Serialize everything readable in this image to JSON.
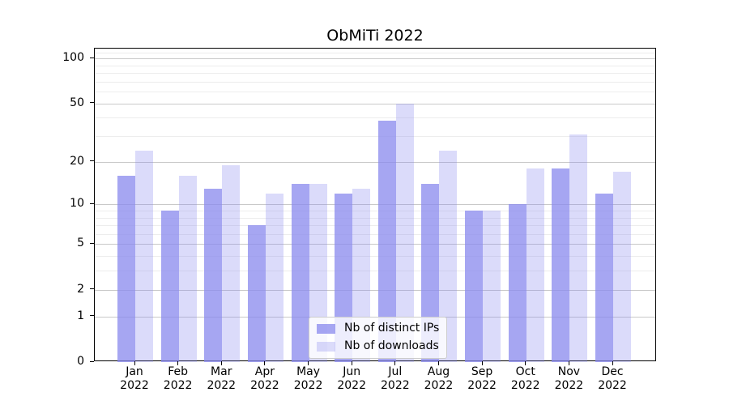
{
  "chart_data": {
    "type": "bar",
    "title": "ObMiTi 2022",
    "categories": [
      {
        "month": "Jan",
        "year": "2022"
      },
      {
        "month": "Feb",
        "year": "2022"
      },
      {
        "month": "Mar",
        "year": "2022"
      },
      {
        "month": "Apr",
        "year": "2022"
      },
      {
        "month": "May",
        "year": "2022"
      },
      {
        "month": "Jun",
        "year": "2022"
      },
      {
        "month": "Jul",
        "year": "2022"
      },
      {
        "month": "Aug",
        "year": "2022"
      },
      {
        "month": "Sep",
        "year": "2022"
      },
      {
        "month": "Oct",
        "year": "2022"
      },
      {
        "month": "Nov",
        "year": "2022"
      },
      {
        "month": "Dec",
        "year": "2022"
      }
    ],
    "series": [
      {
        "name": "Nb of distinct IPs",
        "color": "rgba(136,136,238,0.75)",
        "values": [
          16,
          9,
          13,
          7,
          14,
          12,
          38,
          14,
          9,
          10,
          18,
          12
        ]
      },
      {
        "name": "Nb of downloads",
        "color": "rgba(136,136,238,0.3)",
        "values": [
          24,
          16,
          19,
          12,
          14,
          13,
          50,
          24,
          9,
          18,
          31,
          17
        ]
      }
    ],
    "yscale": "log10(1+x)",
    "ylim": [
      0,
      116
    ],
    "y_major_ticks": [
      0,
      1,
      2,
      5,
      10,
      20,
      50,
      100
    ],
    "y_minor_ticks": [
      3,
      4,
      6,
      7,
      8,
      9,
      30,
      40,
      60,
      70,
      80,
      90,
      110
    ],
    "grid": "horizontal",
    "legend_position": "lower center"
  },
  "colors": {
    "major_grid": "#c9c9c9",
    "minor_grid": "#ededed",
    "axis": "#000000",
    "text": "#000000",
    "background": "#ffffff"
  }
}
